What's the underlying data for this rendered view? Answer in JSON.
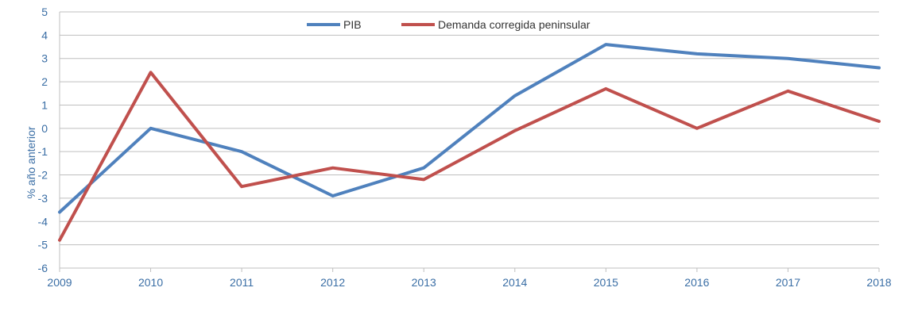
{
  "chart_data": {
    "type": "line",
    "title": "",
    "xlabel": "",
    "ylabel": "% año anterior",
    "x": [
      "2009",
      "2010",
      "2011",
      "2012",
      "2013",
      "2014",
      "2015",
      "2016",
      "2017",
      "2018"
    ],
    "ylim": [
      -6,
      5
    ],
    "yticks": [
      "5",
      "4",
      "3",
      "2",
      "1",
      "0",
      "-1",
      "-2",
      "-3",
      "-4",
      "-5",
      "-6"
    ],
    "grid": true,
    "legend_position": "top-center",
    "series": [
      {
        "name": "PIB",
        "color": "#4f81bd",
        "values": [
          -3.6,
          0.0,
          -1.0,
          -2.9,
          -1.7,
          1.4,
          3.6,
          3.2,
          3.0,
          2.6
        ]
      },
      {
        "name": "Demanda corregida peninsular",
        "color": "#c0504d",
        "values": [
          -4.8,
          2.4,
          -2.5,
          -1.7,
          -2.2,
          -0.1,
          1.7,
          0.0,
          1.6,
          0.3
        ]
      }
    ]
  }
}
